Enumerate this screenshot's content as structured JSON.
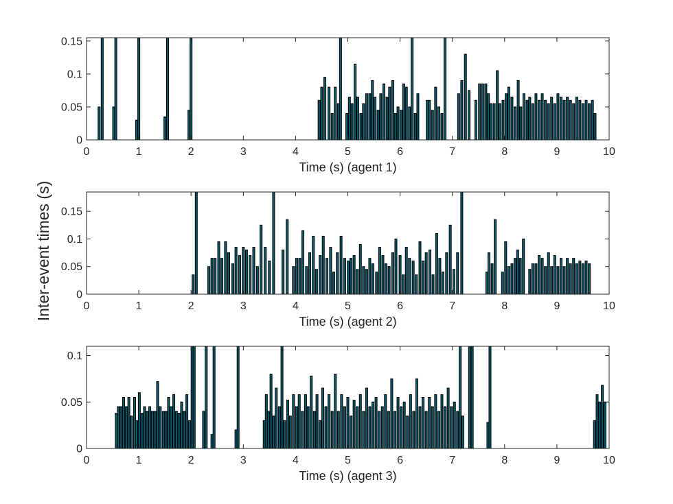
{
  "figure": {
    "ylabel": "Inter-event times (s)"
  },
  "colors": {
    "stem_edge": "#000000",
    "stem_fill": "#0b5c6e",
    "axis": "#262626"
  },
  "chart_data": [
    {
      "type": "bar",
      "xlabel": "Time (s) (agent 1)",
      "xlim": [
        0,
        10
      ],
      "ylim": [
        0,
        0.155
      ],
      "xticks": [
        0,
        1,
        2,
        3,
        4,
        5,
        6,
        7,
        8,
        9,
        10
      ],
      "yticks": [
        0,
        0.05,
        0.1,
        0.15
      ],
      "ytick_labels": [
        "0",
        "0.05",
        "0.1",
        "0.15"
      ],
      "grid": false,
      "x": [
        0.24,
        0.3,
        0.52,
        0.56,
        0.96,
        1.0,
        1.5,
        1.55,
        1.96,
        2.0,
        4.45,
        4.5,
        4.56,
        4.64,
        4.7,
        4.76,
        4.82,
        4.86,
        4.98,
        5.03,
        5.08,
        5.14,
        5.19,
        5.25,
        5.3,
        5.36,
        5.42,
        5.47,
        5.52,
        5.58,
        5.63,
        5.69,
        5.75,
        5.8,
        5.86,
        5.91,
        5.96,
        6.02,
        6.07,
        6.12,
        6.18,
        6.23,
        6.29,
        6.34,
        6.52,
        6.56,
        6.62,
        6.68,
        6.74,
        6.8,
        6.86,
        7.12,
        7.18,
        7.25,
        7.32,
        7.45,
        7.52,
        7.58,
        7.64,
        7.69,
        7.74,
        7.8,
        7.86,
        7.91,
        7.97,
        8.03,
        8.08,
        8.14,
        8.2,
        8.26,
        8.31,
        8.37,
        8.43,
        8.48,
        8.54,
        8.6,
        8.66,
        8.72,
        8.78,
        8.84,
        8.9,
        8.96,
        9.02,
        9.08,
        9.14,
        9.2,
        9.26,
        9.32,
        9.38,
        9.44,
        9.5,
        9.56,
        9.62,
        9.68,
        9.73
      ],
      "values": [
        0.05,
        0.155,
        0.05,
        0.155,
        0.03,
        0.155,
        0.035,
        0.155,
        0.045,
        0.155,
        0.06,
        0.08,
        0.095,
        0.08,
        0.04,
        0.08,
        0.055,
        0.155,
        0.04,
        0.065,
        0.055,
        0.115,
        0.065,
        0.04,
        0.055,
        0.07,
        0.07,
        0.09,
        0.065,
        0.045,
        0.07,
        0.085,
        0.065,
        0.08,
        0.09,
        0.04,
        0.05,
        0.045,
        0.085,
        0.08,
        0.05,
        0.155,
        0.04,
        0.07,
        0.06,
        0.06,
        0.045,
        0.08,
        0.05,
        0.04,
        0.155,
        0.07,
        0.09,
        0.13,
        0.075,
        0.06,
        0.085,
        0.085,
        0.085,
        0.07,
        0.055,
        0.055,
        0.105,
        0.055,
        0.06,
        0.07,
        0.08,
        0.065,
        0.05,
        0.09,
        0.05,
        0.07,
        0.06,
        0.065,
        0.055,
        0.07,
        0.06,
        0.07,
        0.06,
        0.055,
        0.065,
        0.055,
        0.07,
        0.065,
        0.06,
        0.065,
        0.06,
        0.055,
        0.065,
        0.06,
        0.055,
        0.06,
        0.055,
        0.06,
        0.04
      ]
    },
    {
      "type": "bar",
      "xlabel": "Time (s) (agent 2)",
      "xlim": [
        0,
        10
      ],
      "ylim": [
        0,
        0.185
      ],
      "xticks": [
        0,
        1,
        2,
        3,
        4,
        5,
        6,
        7,
        8,
        9,
        10
      ],
      "yticks": [
        0,
        0.05,
        0.1,
        0.15
      ],
      "ytick_labels": [
        "0",
        "0.05",
        "0.1",
        "0.15"
      ],
      "grid": false,
      "x": [
        2.04,
        2.1,
        2.34,
        2.4,
        2.46,
        2.53,
        2.59,
        2.66,
        2.72,
        2.8,
        2.86,
        2.93,
        3.0,
        3.06,
        3.13,
        3.2,
        3.27,
        3.34,
        3.42,
        3.5,
        3.58,
        3.76,
        3.84,
        3.96,
        4.02,
        4.08,
        4.14,
        4.21,
        4.27,
        4.34,
        4.4,
        4.47,
        4.53,
        4.6,
        4.67,
        4.73,
        4.8,
        4.87,
        4.94,
        5.01,
        5.06,
        5.12,
        5.18,
        5.24,
        5.3,
        5.36,
        5.42,
        5.48,
        5.55,
        5.61,
        5.67,
        5.73,
        5.79,
        5.86,
        5.92,
        6.0,
        6.06,
        6.12,
        6.18,
        6.25,
        6.31,
        6.38,
        6.44,
        6.5,
        6.57,
        6.63,
        6.7,
        6.76,
        6.82,
        6.89,
        6.96,
        7.03,
        7.1,
        7.18,
        7.66,
        7.7,
        7.76,
        7.82,
        7.96,
        8.02,
        8.08,
        8.14,
        8.2,
        8.25,
        8.3,
        8.36,
        8.48,
        8.54,
        8.6,
        8.66,
        8.72,
        8.78,
        8.84,
        8.9,
        8.96,
        9.02,
        9.08,
        9.14,
        9.2,
        9.26,
        9.32,
        9.38,
        9.44,
        9.5,
        9.56,
        9.62
      ],
      "values": [
        0.035,
        0.185,
        0.05,
        0.065,
        0.065,
        0.095,
        0.065,
        0.095,
        0.075,
        0.055,
        0.085,
        0.07,
        0.085,
        0.08,
        0.07,
        0.085,
        0.05,
        0.125,
        0.085,
        0.06,
        0.185,
        0.08,
        0.135,
        0.05,
        0.065,
        0.065,
        0.115,
        0.05,
        0.075,
        0.105,
        0.045,
        0.07,
        0.105,
        0.065,
        0.085,
        0.04,
        0.075,
        0.105,
        0.065,
        0.06,
        0.065,
        0.07,
        0.045,
        0.09,
        0.05,
        0.045,
        0.065,
        0.055,
        0.04,
        0.085,
        0.07,
        0.055,
        0.05,
        0.075,
        0.1,
        0.07,
        0.035,
        0.085,
        0.065,
        0.06,
        0.035,
        0.095,
        0.06,
        0.075,
        0.08,
        0.035,
        0.11,
        0.065,
        0.04,
        0.075,
        0.125,
        0.045,
        0.075,
        0.185,
        0.04,
        0.075,
        0.055,
        0.135,
        0.04,
        0.095,
        0.05,
        0.055,
        0.065,
        0.08,
        0.065,
        0.1,
        0.045,
        0.055,
        0.055,
        0.07,
        0.065,
        0.05,
        0.075,
        0.05,
        0.07,
        0.05,
        0.065,
        0.05,
        0.065,
        0.055,
        0.065,
        0.055,
        0.06,
        0.055,
        0.06,
        0.055
      ]
    },
    {
      "type": "bar",
      "xlabel": "Time (s) (agent 3)",
      "xlim": [
        0,
        10
      ],
      "ylim": [
        0,
        0.11
      ],
      "xticks": [
        0,
        1,
        2,
        3,
        4,
        5,
        6,
        7,
        8,
        9,
        10
      ],
      "yticks": [
        0,
        0.05,
        0.1
      ],
      "ytick_labels": [
        "0",
        "0.05",
        "0.1"
      ],
      "grid": false,
      "x": [
        0.57,
        0.61,
        0.66,
        0.71,
        0.76,
        0.81,
        0.86,
        0.92,
        0.96,
        1.01,
        1.06,
        1.11,
        1.16,
        1.21,
        1.26,
        1.31,
        1.36,
        1.41,
        1.47,
        1.52,
        1.57,
        1.62,
        1.67,
        1.72,
        1.77,
        1.82,
        1.87,
        1.92,
        1.97,
        2.02,
        2.06,
        2.24,
        2.29,
        2.4,
        2.44,
        2.86,
        2.9,
        3.4,
        3.44,
        3.48,
        3.53,
        3.58,
        3.63,
        3.69,
        3.74,
        3.79,
        3.85,
        3.9,
        3.96,
        4.02,
        4.07,
        4.13,
        4.19,
        4.24,
        4.3,
        4.36,
        4.41,
        4.47,
        4.52,
        4.58,
        4.64,
        4.7,
        4.76,
        4.82,
        4.88,
        4.94,
        5.0,
        5.06,
        5.12,
        5.18,
        5.24,
        5.3,
        5.36,
        5.42,
        5.48,
        5.54,
        5.6,
        5.66,
        5.72,
        5.78,
        5.84,
        5.9,
        5.96,
        6.02,
        6.08,
        6.14,
        6.2,
        6.26,
        6.32,
        6.38,
        6.44,
        6.5,
        6.56,
        6.62,
        6.68,
        6.74,
        6.8,
        6.86,
        6.92,
        6.98,
        7.04,
        7.1,
        7.15,
        7.2,
        7.33,
        7.38,
        7.68,
        7.72,
        9.72,
        9.77,
        9.82,
        9.87,
        9.92
      ],
      "values": [
        0.038,
        0.045,
        0.045,
        0.055,
        0.045,
        0.055,
        0.035,
        0.055,
        0.03,
        0.06,
        0.038,
        0.045,
        0.04,
        0.045,
        0.04,
        0.04,
        0.072,
        0.045,
        0.04,
        0.04,
        0.055,
        0.045,
        0.058,
        0.04,
        0.038,
        0.05,
        0.04,
        0.058,
        0.03,
        0.11,
        0.11,
        0.04,
        0.11,
        0.015,
        0.11,
        0.02,
        0.11,
        0.03,
        0.058,
        0.04,
        0.08,
        0.035,
        0.065,
        0.045,
        0.11,
        0.03,
        0.052,
        0.035,
        0.058,
        0.045,
        0.058,
        0.04,
        0.058,
        0.045,
        0.078,
        0.04,
        0.058,
        0.03,
        0.065,
        0.045,
        0.058,
        0.04,
        0.08,
        0.04,
        0.058,
        0.045,
        0.055,
        0.035,
        0.052,
        0.045,
        0.058,
        0.04,
        0.065,
        0.045,
        0.05,
        0.055,
        0.04,
        0.045,
        0.058,
        0.04,
        0.075,
        0.04,
        0.055,
        0.045,
        0.05,
        0.035,
        0.058,
        0.04,
        0.075,
        0.045,
        0.055,
        0.04,
        0.055,
        0.045,
        0.058,
        0.04,
        0.058,
        0.045,
        0.065,
        0.045,
        0.05,
        0.04,
        0.11,
        0.035,
        0.11,
        0.11,
        0.028,
        0.11,
        0.03,
        0.058,
        0.05,
        0.068,
        0.05
      ]
    }
  ]
}
